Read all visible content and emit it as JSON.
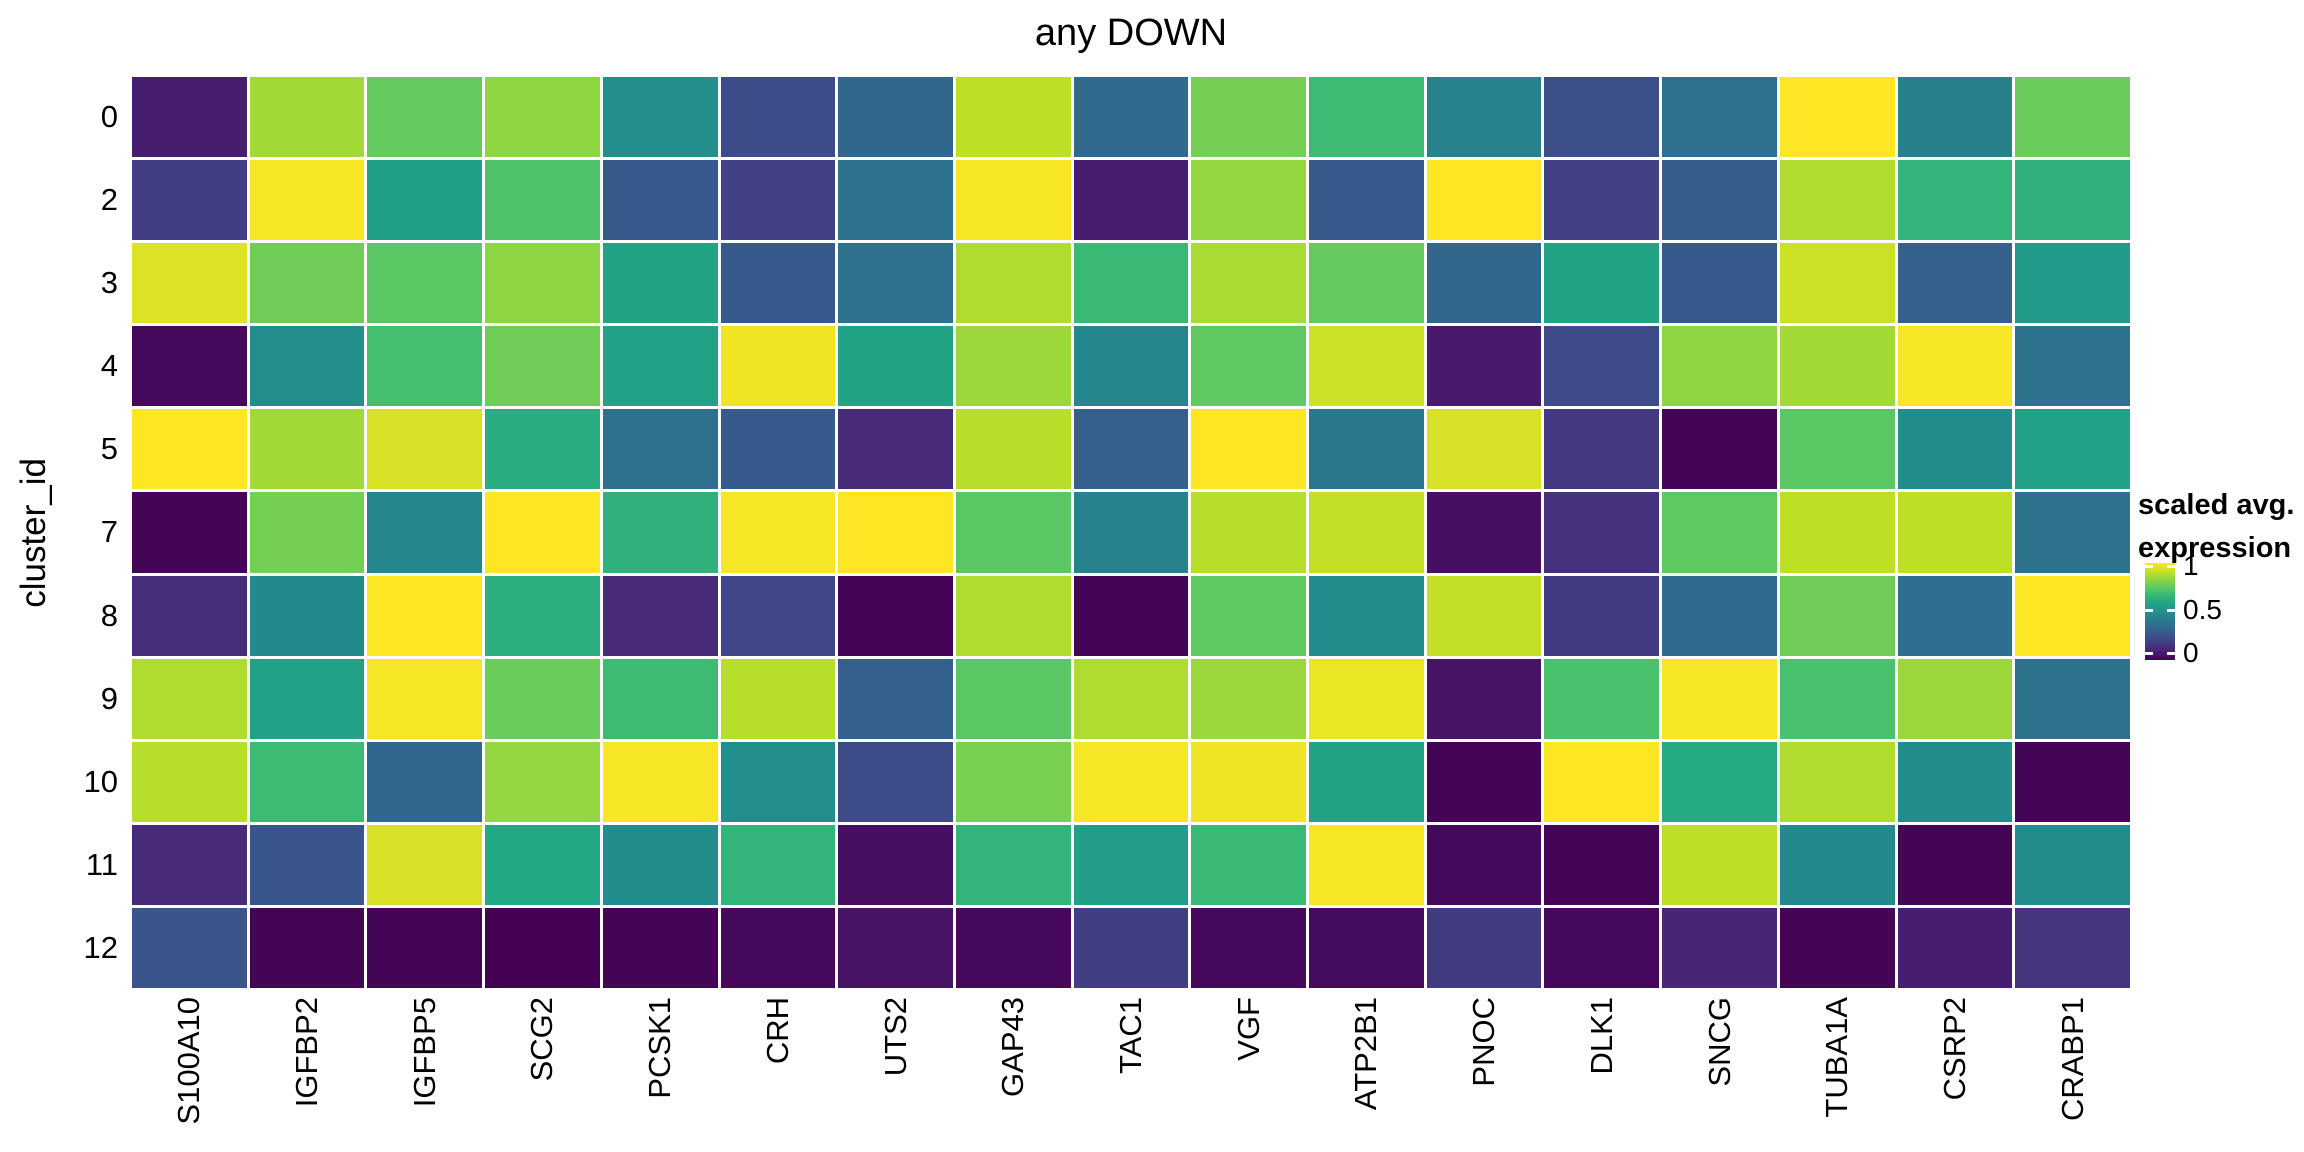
{
  "title": "any DOWN",
  "y_axis_title": "cluster_id",
  "legend": {
    "title_line1": "scaled avg.",
    "title_line2": "expression",
    "ticks": [
      "1",
      "0.5",
      "0"
    ]
  },
  "colors": {
    "background": "#FFFFFF",
    "text": "#000000",
    "viridis_anchors": [
      "#440154",
      "#482576",
      "#414487",
      "#35608D",
      "#2B788E",
      "#21918C",
      "#22A884",
      "#44BF70",
      "#7AD151",
      "#BDDF26",
      "#FDE725"
    ]
  },
  "chart_data": {
    "type": "heatmap",
    "title": "any DOWN",
    "xlabel": "",
    "ylabel": "cluster_id",
    "colormap": "viridis",
    "value_label": "scaled avg. expression",
    "value_range": [
      0,
      1
    ],
    "legend_tick_values": [
      1,
      0.5,
      0
    ],
    "x_categories": [
      "S100A10",
      "IGFBP2",
      "IGFBP5",
      "SCG2",
      "PCSK1",
      "CRH",
      "UTS2",
      "GAP43",
      "TAC1",
      "VGF",
      "ATP2B1",
      "PNOC",
      "DLK1",
      "SNCG",
      "TUBA1A",
      "CSRP2",
      "CRABP1"
    ],
    "y_categories": [
      "0",
      "2",
      "3",
      "4",
      "5",
      "7",
      "8",
      "9",
      "10",
      "11",
      "12"
    ],
    "values": [
      [
        0.08,
        0.86,
        0.76,
        0.83,
        0.49,
        0.23,
        0.33,
        0.9,
        0.34,
        0.79,
        0.68,
        0.44,
        0.24,
        0.37,
        1.0,
        0.43,
        0.77
      ],
      [
        0.18,
        0.99,
        0.56,
        0.72,
        0.28,
        0.19,
        0.37,
        0.99,
        0.08,
        0.84,
        0.28,
        1.0,
        0.19,
        0.29,
        0.88,
        0.65,
        0.64
      ],
      [
        0.95,
        0.78,
        0.74,
        0.83,
        0.58,
        0.28,
        0.37,
        0.88,
        0.67,
        0.87,
        0.76,
        0.33,
        0.58,
        0.28,
        0.92,
        0.31,
        0.54
      ],
      [
        0.02,
        0.49,
        0.7,
        0.78,
        0.57,
        0.98,
        0.58,
        0.85,
        0.45,
        0.75,
        0.92,
        0.07,
        0.22,
        0.83,
        0.86,
        0.99,
        0.38
      ],
      [
        1.0,
        0.86,
        0.94,
        0.62,
        0.37,
        0.28,
        0.12,
        0.89,
        0.3,
        1.0,
        0.4,
        0.94,
        0.16,
        0.01,
        0.74,
        0.48,
        0.57
      ],
      [
        0.01,
        0.79,
        0.46,
        1.0,
        0.64,
        0.99,
        1.0,
        0.74,
        0.44,
        0.89,
        0.91,
        0.04,
        0.14,
        0.75,
        0.9,
        0.9,
        0.38
      ],
      [
        0.13,
        0.47,
        1.0,
        0.63,
        0.12,
        0.21,
        0.01,
        0.88,
        0.01,
        0.75,
        0.48,
        0.91,
        0.17,
        0.34,
        0.78,
        0.36,
        1.0
      ],
      [
        0.88,
        0.57,
        0.99,
        0.77,
        0.68,
        0.89,
        0.3,
        0.74,
        0.88,
        0.85,
        0.97,
        0.05,
        0.71,
        0.99,
        0.71,
        0.85,
        0.38
      ],
      [
        0.89,
        0.68,
        0.33,
        0.84,
        0.99,
        0.49,
        0.23,
        0.8,
        0.99,
        0.98,
        0.58,
        0.01,
        1.0,
        0.61,
        0.88,
        0.48,
        0.01
      ],
      [
        0.12,
        0.26,
        0.94,
        0.6,
        0.48,
        0.65,
        0.04,
        0.65,
        0.55,
        0.67,
        0.99,
        0.02,
        0.01,
        0.9,
        0.47,
        0.01,
        0.48
      ],
      [
        0.26,
        0.01,
        0.01,
        0.0,
        0.01,
        0.02,
        0.05,
        0.02,
        0.18,
        0.02,
        0.03,
        0.17,
        0.02,
        0.1,
        0.01,
        0.08,
        0.15
      ]
    ]
  }
}
